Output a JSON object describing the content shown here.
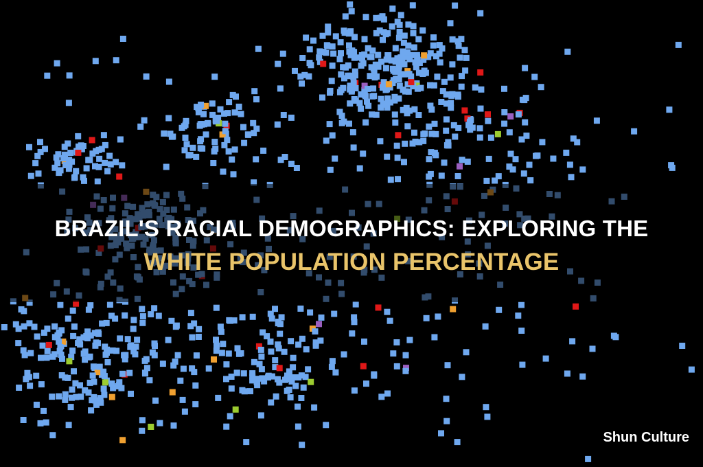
{
  "title": {
    "line1": "BRAZIL'S RACIAL DEMOGRAPHICS: EXPLORING THE",
    "line2": "WHITE POPULATION PERCENTAGE"
  },
  "brand": "Shun Culture"
}
